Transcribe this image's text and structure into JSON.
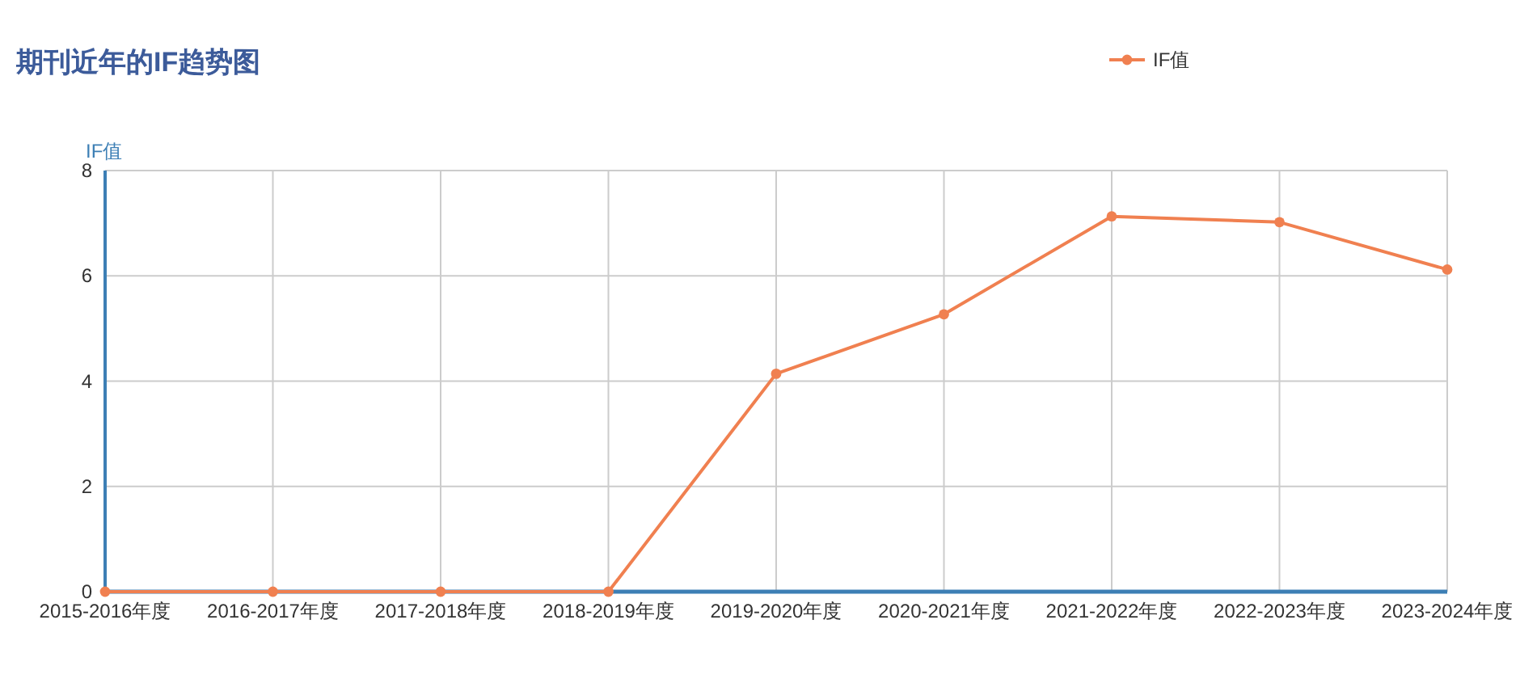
{
  "chart_data": {
    "type": "line",
    "title": "期刊近年的IF趋势图",
    "ylabel": "IF值",
    "categories": [
      "2015-2016年度",
      "2016-2017年度",
      "2017-2018年度",
      "2018-2019年度",
      "2019-2020年度",
      "2020-2021年度",
      "2021-2022年度",
      "2022-2023年度",
      "2023-2024年度"
    ],
    "series": [
      {
        "name": "IF值",
        "color": "#f08050",
        "values": [
          0,
          0,
          0,
          0,
          4.14,
          5.27,
          7.13,
          7.02,
          6.12
        ]
      }
    ],
    "ylim": [
      0,
      8
    ],
    "yticks": [
      0,
      2,
      4,
      6,
      8
    ],
    "grid": true,
    "legend": "top right",
    "marker": "circle",
    "line_style": "solid"
  }
}
